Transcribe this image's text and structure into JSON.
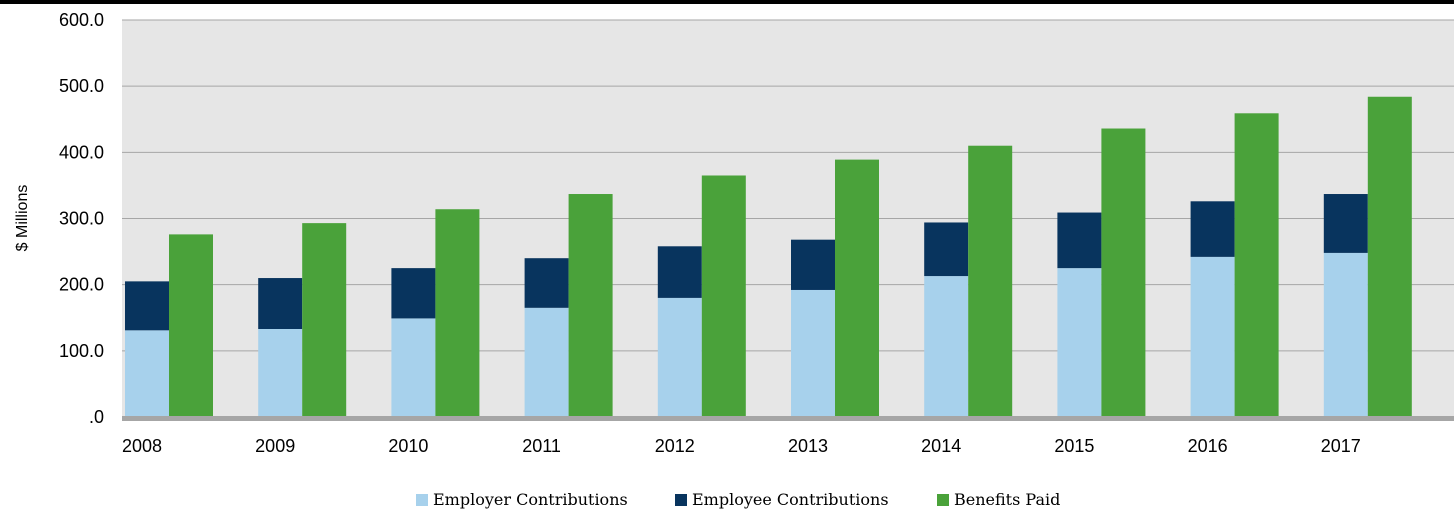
{
  "chart_data": {
    "type": "bar",
    "title": "",
    "xlabel": "",
    "ylabel": "$ Millions",
    "ylim": [
      0,
      600
    ],
    "yticks": [
      ".0",
      "100.0",
      "200.0",
      "300.0",
      "400.0",
      "500.0",
      "600.0"
    ],
    "ytick_values": [
      0,
      100,
      200,
      300,
      400,
      500,
      600
    ],
    "grid": true,
    "legend_position": "bottom",
    "categories": [
      "2008",
      "2009",
      "2010",
      "2011",
      "2012",
      "2013",
      "2014",
      "2015",
      "2016",
      "2017"
    ],
    "series": [
      {
        "name": "Employer Contributions",
        "stack": "contributions",
        "color": "#a7d1ec",
        "values": [
          131,
          133,
          149,
          165,
          180,
          192,
          213,
          225,
          242,
          248
        ]
      },
      {
        "name": "Employee Contributions",
        "stack": "contributions",
        "color": "#08345e",
        "values": [
          74,
          77,
          76,
          75,
          78,
          76,
          81,
          84,
          84,
          89
        ]
      },
      {
        "name": "Benefits Paid",
        "stack": "benefits",
        "color": "#4aa23a",
        "values": [
          276,
          293,
          314,
          337,
          365,
          389,
          410,
          436,
          459,
          484
        ]
      }
    ],
    "colors": {
      "plot_background": "#e6e6e6",
      "gridline": "#a6a6a6",
      "baseline": "#a6a6a6"
    }
  }
}
